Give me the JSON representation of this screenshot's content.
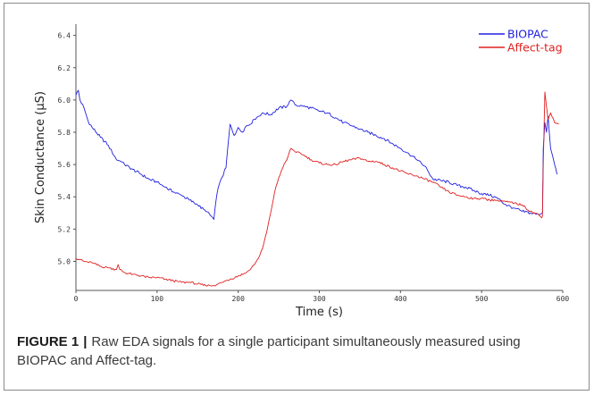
{
  "chart_data": {
    "type": "line",
    "xlabel": "Time (s)",
    "ylabel": "Skin Conductance (µS)",
    "xlim": [
      0,
      600
    ],
    "ylim": [
      4.82,
      6.47
    ],
    "x_ticks": [
      "0",
      "100",
      "200",
      "300",
      "400",
      "500",
      "600"
    ],
    "y_ticks": [
      "5.0",
      "5.2",
      "5.4",
      "5.6",
      "5.8",
      "6.0",
      "6.2",
      "6.4"
    ],
    "grid": false,
    "legend_position": "top-right",
    "series": [
      {
        "name": "BIOPAC",
        "color": "#2020e0",
        "x": [
          0,
          3,
          5,
          10,
          15,
          20,
          30,
          40,
          45,
          48,
          50,
          55,
          60,
          70,
          80,
          90,
          100,
          110,
          120,
          130,
          140,
          150,
          160,
          165,
          170,
          172,
          175,
          180,
          185,
          188,
          190,
          195,
          200,
          205,
          210,
          215,
          220,
          230,
          240,
          250,
          260,
          265,
          270,
          280,
          290,
          300,
          310,
          320,
          330,
          340,
          350,
          360,
          370,
          380,
          390,
          400,
          410,
          420,
          430,
          435,
          440,
          450,
          460,
          470,
          480,
          490,
          500,
          510,
          520,
          530,
          540,
          550,
          560,
          570,
          575,
          576,
          578,
          580,
          582,
          585,
          590,
          593
        ],
        "y": [
          6.03,
          6.06,
          6.0,
          5.95,
          5.87,
          5.83,
          5.77,
          5.72,
          5.67,
          5.65,
          5.63,
          5.62,
          5.6,
          5.57,
          5.54,
          5.51,
          5.49,
          5.46,
          5.43,
          5.41,
          5.38,
          5.35,
          5.31,
          5.29,
          5.26,
          5.35,
          5.45,
          5.52,
          5.58,
          5.75,
          5.85,
          5.78,
          5.83,
          5.8,
          5.84,
          5.85,
          5.88,
          5.92,
          5.91,
          5.95,
          5.96,
          6.0,
          5.97,
          5.96,
          5.95,
          5.93,
          5.92,
          5.89,
          5.86,
          5.84,
          5.82,
          5.8,
          5.78,
          5.76,
          5.73,
          5.7,
          5.67,
          5.63,
          5.59,
          5.55,
          5.51,
          5.5,
          5.49,
          5.47,
          5.46,
          5.44,
          5.42,
          5.41,
          5.39,
          5.35,
          5.33,
          5.31,
          5.3,
          5.29,
          5.3,
          5.7,
          5.86,
          5.8,
          5.9,
          5.7,
          5.6,
          5.54
        ]
      },
      {
        "name": "Affect-tag",
        "color": "#e02020",
        "x": [
          0,
          5,
          10,
          20,
          30,
          40,
          50,
          52,
          54,
          60,
          70,
          80,
          90,
          100,
          110,
          120,
          130,
          140,
          150,
          160,
          165,
          170,
          175,
          180,
          190,
          200,
          210,
          215,
          220,
          225,
          230,
          235,
          240,
          245,
          250,
          255,
          260,
          265,
          270,
          280,
          290,
          300,
          310,
          320,
          330,
          340,
          350,
          360,
          370,
          380,
          390,
          400,
          410,
          420,
          430,
          440,
          450,
          460,
          470,
          480,
          490,
          500,
          510,
          520,
          530,
          540,
          550,
          560,
          570,
          572,
          574,
          575,
          576,
          578,
          580,
          582,
          585,
          590,
          595
        ],
        "y": [
          5.02,
          5.01,
          5.0,
          4.99,
          4.97,
          4.96,
          4.95,
          4.98,
          4.95,
          4.93,
          4.92,
          4.91,
          4.9,
          4.9,
          4.89,
          4.88,
          4.87,
          4.87,
          4.86,
          4.85,
          4.85,
          4.85,
          4.86,
          4.87,
          4.89,
          4.91,
          4.93,
          4.95,
          4.98,
          5.02,
          5.08,
          5.18,
          5.3,
          5.43,
          5.52,
          5.58,
          5.63,
          5.7,
          5.68,
          5.66,
          5.63,
          5.61,
          5.6,
          5.6,
          5.62,
          5.63,
          5.64,
          5.62,
          5.62,
          5.6,
          5.58,
          5.56,
          5.54,
          5.53,
          5.51,
          5.49,
          5.46,
          5.43,
          5.41,
          5.4,
          5.39,
          5.39,
          5.38,
          5.38,
          5.37,
          5.36,
          5.35,
          5.31,
          5.29,
          5.28,
          5.27,
          5.28,
          5.6,
          6.05,
          5.96,
          5.88,
          5.92,
          5.86,
          5.85
        ]
      }
    ]
  },
  "caption": {
    "label": "FIGURE 1",
    "separator": "|",
    "text": "Raw EDA signals for a single participant simultaneously measured using BIOPAC and Affect-tag."
  }
}
